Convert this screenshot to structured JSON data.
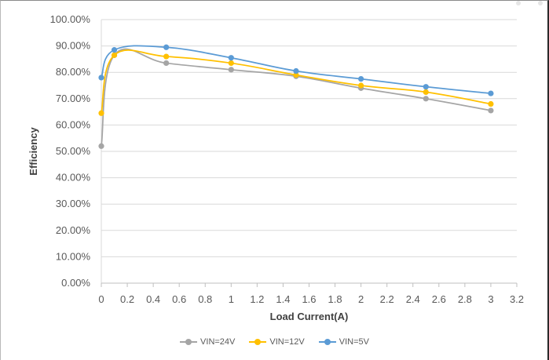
{
  "chart_data": {
    "type": "line",
    "smooth": true,
    "xlabel": "Load Current(A)",
    "ylabel": "Efficiency",
    "xlim": [
      0,
      3.2
    ],
    "ylim": [
      0,
      1
    ],
    "x_ticks": [
      "0",
      "0.2",
      "0.4",
      "0.6",
      "0.8",
      "1",
      "1.2",
      "1.4",
      "1.6",
      "1.8",
      "2",
      "2.2",
      "2.4",
      "2.6",
      "2.8",
      "3",
      "3.2"
    ],
    "y_ticks": [
      "0.00%",
      "10.00%",
      "20.00%",
      "30.00%",
      "40.00%",
      "50.00%",
      "60.00%",
      "70.00%",
      "80.00%",
      "90.00%",
      "100.00%"
    ],
    "grid": "horizontal",
    "legend_position": "bottom",
    "series": [
      {
        "name": "VIN=24V",
        "color": "#a5a5a5",
        "points": [
          [
            0,
            0.52
          ],
          [
            0.1,
            0.865
          ],
          [
            0.5,
            0.835
          ],
          [
            1,
            0.81
          ],
          [
            1.5,
            0.785
          ],
          [
            2,
            0.74
          ],
          [
            2.5,
            0.7
          ],
          [
            3,
            0.655
          ]
        ]
      },
      {
        "name": "VIN=12V",
        "color": "#ffc000",
        "points": [
          [
            0,
            0.645
          ],
          [
            0.1,
            0.865
          ],
          [
            0.5,
            0.86
          ],
          [
            1,
            0.835
          ],
          [
            1.5,
            0.79
          ],
          [
            2,
            0.75
          ],
          [
            2.5,
            0.725
          ],
          [
            3,
            0.68
          ]
        ]
      },
      {
        "name": "VIN=5V",
        "color": "#5b9bd5",
        "points": [
          [
            0,
            0.78
          ],
          [
            0.1,
            0.885
          ],
          [
            0.5,
            0.895
          ],
          [
            1,
            0.855
          ],
          [
            1.5,
            0.805
          ],
          [
            2,
            0.775
          ],
          [
            2.5,
            0.745
          ],
          [
            3,
            0.72
          ]
        ]
      }
    ]
  }
}
